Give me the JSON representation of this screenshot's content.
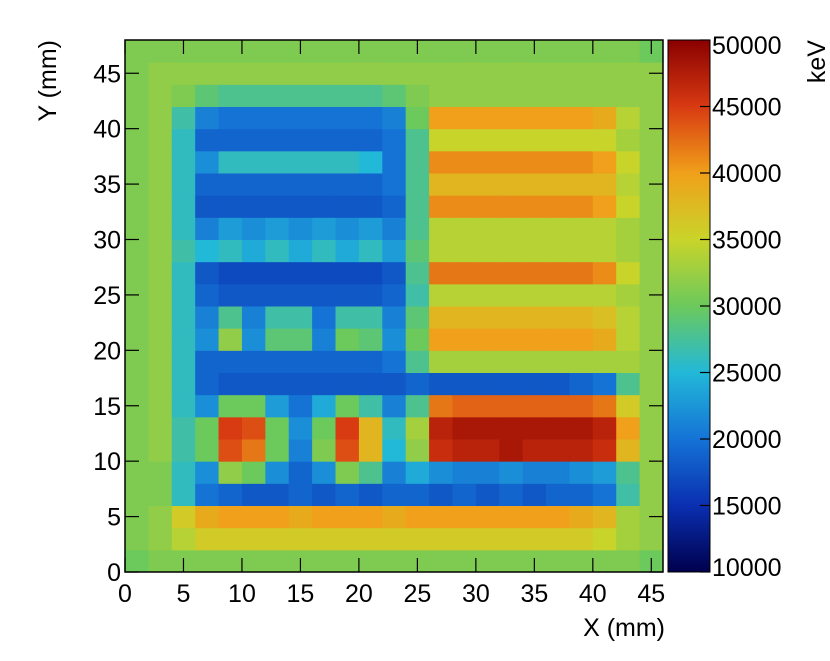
{
  "chart_data": {
    "type": "heatmap",
    "x_label": "X (mm)",
    "y_label": "Y (mm)",
    "colorbar_label": "keV",
    "x": [
      1,
      3,
      5,
      7,
      9,
      11,
      13,
      15,
      17,
      19,
      21,
      23,
      25,
      27,
      29,
      31,
      33,
      35,
      37,
      39,
      41,
      43,
      45
    ],
    "y": [
      1,
      3,
      5,
      7,
      9,
      11,
      13,
      15,
      17,
      19,
      21,
      23,
      25,
      27,
      29,
      31,
      33,
      35,
      37,
      39,
      41,
      43,
      45,
      47
    ],
    "xlim": [
      0,
      46
    ],
    "ylim": [
      0,
      48
    ],
    "xticks": [
      0,
      5,
      10,
      15,
      20,
      25,
      30,
      35,
      40,
      45
    ],
    "yticks": [
      0,
      5,
      10,
      15,
      20,
      25,
      30,
      35,
      40,
      45
    ],
    "zlim": [
      10000,
      50000
    ],
    "zticks": [
      10000,
      15000,
      20000,
      25000,
      30000,
      35000,
      40000,
      45000,
      50000
    ],
    "colormap": [
      "#00004d",
      "#0a2fb0",
      "#1573d6",
      "#22b8d8",
      "#6cc95c",
      "#c9d42a",
      "#f0a01a",
      "#d83a12",
      "#8a0000"
    ],
    "z": [
      [
        30000,
        31000,
        31000,
        31000,
        31000,
        31000,
        31000,
        31000,
        31000,
        31000,
        31000,
        31000,
        31000,
        31000,
        31000,
        31000,
        31000,
        31000,
        31000,
        31000,
        31000,
        31000,
        30000
      ],
      [
        31000,
        32000,
        34000,
        36000,
        36000,
        36000,
        36000,
        36000,
        36000,
        36000,
        36000,
        36000,
        36000,
        36000,
        36000,
        36000,
        36000,
        36000,
        36000,
        36000,
        35000,
        33000,
        32000
      ],
      [
        31000,
        32000,
        36000,
        39000,
        40000,
        40000,
        40000,
        39000,
        40000,
        40000,
        40000,
        39000,
        40000,
        40000,
        40000,
        40000,
        40000,
        40000,
        40000,
        39000,
        38000,
        33000,
        32000
      ],
      [
        31000,
        31000,
        26000,
        20000,
        19000,
        18000,
        18000,
        19000,
        18000,
        19000,
        18000,
        19000,
        19000,
        18000,
        19000,
        18000,
        19000,
        18000,
        19000,
        19000,
        20000,
        27000,
        32000
      ],
      [
        31000,
        31000,
        26000,
        22000,
        32000,
        30000,
        22000,
        19000,
        22000,
        31000,
        28000,
        21000,
        24000,
        22000,
        21000,
        21000,
        22000,
        21000,
        21000,
        22000,
        23000,
        28000,
        32000
      ],
      [
        31000,
        32000,
        27000,
        30000,
        44000,
        42000,
        30000,
        21000,
        31000,
        44000,
        38000,
        25000,
        32000,
        46000,
        47000,
        47000,
        48000,
        47000,
        47000,
        47000,
        46000,
        38000,
        32000
      ],
      [
        31000,
        32000,
        27000,
        30000,
        45000,
        44000,
        30000,
        22000,
        30000,
        45000,
        38000,
        26000,
        33000,
        47000,
        48000,
        48000,
        48000,
        48000,
        48000,
        48000,
        47000,
        40000,
        32000
      ],
      [
        31000,
        32000,
        26000,
        22000,
        30000,
        30000,
        23000,
        20000,
        24000,
        30000,
        27000,
        21000,
        28000,
        42000,
        43000,
        43000,
        43000,
        43000,
        43000,
        43000,
        42000,
        36000,
        32000
      ],
      [
        31000,
        32000,
        26000,
        19000,
        18000,
        18000,
        18000,
        18000,
        18000,
        18000,
        18000,
        18000,
        19000,
        18000,
        18000,
        18000,
        18000,
        18000,
        18000,
        19000,
        20000,
        28000,
        32000
      ],
      [
        31000,
        32000,
        26000,
        19000,
        19000,
        19000,
        19000,
        19000,
        19000,
        19000,
        19000,
        20000,
        28000,
        33000,
        33000,
        33000,
        33000,
        33000,
        33000,
        33000,
        33000,
        33000,
        32000
      ],
      [
        31000,
        32000,
        26000,
        22000,
        32000,
        22000,
        29000,
        29000,
        21000,
        30000,
        29000,
        22000,
        30000,
        40000,
        40000,
        40000,
        40000,
        40000,
        40000,
        40000,
        39000,
        34000,
        32000
      ],
      [
        31000,
        32000,
        26000,
        21000,
        28000,
        21000,
        27000,
        27000,
        20000,
        27000,
        27000,
        21000,
        29000,
        38000,
        38000,
        38000,
        38000,
        38000,
        38000,
        38000,
        37000,
        34000,
        32000
      ],
      [
        31000,
        32000,
        26000,
        19000,
        18000,
        18000,
        18000,
        18000,
        18000,
        18000,
        18000,
        19000,
        27000,
        34000,
        34000,
        34000,
        34000,
        34000,
        34000,
        34000,
        34000,
        33000,
        32000
      ],
      [
        31000,
        32000,
        26000,
        18000,
        17000,
        17000,
        17000,
        17000,
        17000,
        17000,
        17000,
        18000,
        28000,
        42000,
        42000,
        42000,
        42000,
        42000,
        42000,
        42000,
        41000,
        35000,
        32000
      ],
      [
        31000,
        32000,
        27000,
        25000,
        26000,
        24000,
        26000,
        24000,
        26000,
        24000,
        26000,
        23000,
        29000,
        34000,
        34000,
        34000,
        34000,
        34000,
        34000,
        34000,
        34000,
        33000,
        32000
      ],
      [
        31000,
        32000,
        26000,
        21000,
        23000,
        22000,
        23000,
        22000,
        23000,
        22000,
        23000,
        21000,
        28000,
        34000,
        34000,
        34000,
        34000,
        34000,
        34000,
        34000,
        34000,
        33000,
        32000
      ],
      [
        31000,
        32000,
        26000,
        18000,
        18000,
        18000,
        18000,
        18000,
        18000,
        18000,
        18000,
        19000,
        28000,
        41000,
        41000,
        41000,
        41000,
        41000,
        41000,
        41000,
        40000,
        35000,
        32000
      ],
      [
        31000,
        32000,
        26000,
        19000,
        19000,
        19000,
        19000,
        19000,
        19000,
        19000,
        19000,
        20000,
        28000,
        38000,
        38000,
        38000,
        38000,
        38000,
        38000,
        38000,
        38000,
        34000,
        32000
      ],
      [
        31000,
        32000,
        26000,
        22000,
        26000,
        26000,
        26000,
        26000,
        26000,
        26000,
        25000,
        20000,
        28000,
        41000,
        41000,
        41000,
        41000,
        41000,
        41000,
        41000,
        40000,
        35000,
        32000
      ],
      [
        31000,
        32000,
        26000,
        19000,
        19000,
        19000,
        19000,
        19000,
        19000,
        19000,
        19000,
        20000,
        28000,
        35000,
        35000,
        35000,
        35000,
        35000,
        35000,
        35000,
        35000,
        33000,
        32000
      ],
      [
        31000,
        32000,
        27000,
        21000,
        20000,
        20000,
        20000,
        20000,
        20000,
        20000,
        20000,
        21000,
        30000,
        40000,
        40000,
        40000,
        40000,
        40000,
        40000,
        40000,
        39000,
        34000,
        32000
      ],
      [
        31000,
        32000,
        31000,
        29000,
        28000,
        28000,
        28000,
        28000,
        28000,
        28000,
        28000,
        29000,
        31000,
        32000,
        32000,
        32000,
        32000,
        32000,
        32000,
        32000,
        32000,
        32000,
        32000
      ],
      [
        31000,
        32000,
        32000,
        32000,
        32000,
        32000,
        32000,
        32000,
        32000,
        32000,
        32000,
        32000,
        32000,
        32000,
        32000,
        32000,
        32000,
        32000,
        32000,
        32000,
        32000,
        32000,
        32000
      ],
      [
        31000,
        31000,
        31000,
        31000,
        31000,
        31000,
        31000,
        31000,
        31000,
        31000,
        31000,
        31000,
        31000,
        31000,
        31000,
        31000,
        31000,
        31000,
        31000,
        31000,
        31000,
        31000,
        30000
      ]
    ]
  }
}
